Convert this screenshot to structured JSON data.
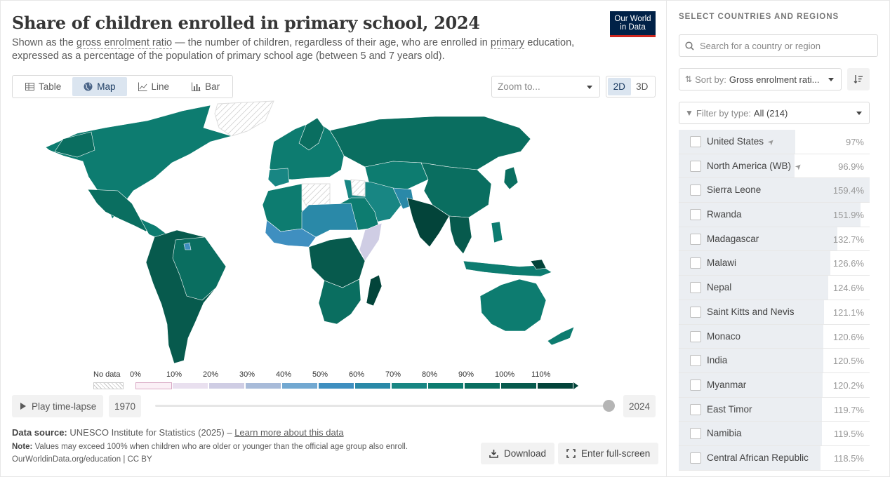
{
  "header": {
    "title": "Share of children enrolled in primary school, 2024",
    "subtitle_pre": "Shown as the ",
    "subtitle_link1": "gross enrolment ratio",
    "subtitle_mid": " — the number of children, regardless of their age, who are enrolled in ",
    "subtitle_link2": "primary",
    "subtitle_post": " education, expressed as a percentage of the population of primary school age (between 5 and 7 years old).",
    "logo_line1": "Our World",
    "logo_line2": "in Data"
  },
  "tabs": [
    {
      "label": "Table",
      "icon": "table-icon",
      "active": false
    },
    {
      "label": "Map",
      "icon": "globe-icon",
      "active": true
    },
    {
      "label": "Line",
      "icon": "line-chart-icon",
      "active": false
    },
    {
      "label": "Bar",
      "icon": "bar-chart-icon",
      "active": false
    }
  ],
  "zoom": {
    "placeholder": "Zoom to..."
  },
  "dims": {
    "two_d": "2D",
    "three_d": "3D",
    "active": "2D"
  },
  "legend": {
    "no_data": "No data",
    "ticks": [
      "0%",
      "10%",
      "20%",
      "30%",
      "40%",
      "50%",
      "60%",
      "70%",
      "80%",
      "90%",
      "100%",
      "110%"
    ],
    "colors": [
      "#fbf0f6",
      "#e9e0ef",
      "#cfcde4",
      "#a8bbd9",
      "#72a8d1",
      "#3f8fc0",
      "#2a89a8",
      "#188683",
      "#0d7c70",
      "#0a6e60",
      "#075a4d",
      "#03443a"
    ]
  },
  "timeline": {
    "play_label": "Play time-lapse",
    "start_year": "1970",
    "end_year": "2024",
    "position": 1.0
  },
  "footer": {
    "source_label": "Data source:",
    "source_text": "UNESCO Institute for Statistics (2025) – ",
    "source_link": "Learn more about this data",
    "note_label": "Note:",
    "note_text": "Values may exceed 100% when children who are older or younger than the official age group also enroll.",
    "cite": "OurWorldinData.org/education | CC BY",
    "download": "Download",
    "fullscreen": "Enter full-screen"
  },
  "sidebar": {
    "title": "SELECT COUNTRIES AND REGIONS",
    "search_placeholder": "Search for a country or region",
    "sort_label": "Sort by:",
    "sort_value": "Gross enrolment rati...",
    "filter_label": "Filter by type:",
    "filter_value": "All (214)",
    "rows": [
      {
        "name": "United States",
        "value": "97%",
        "num": 97,
        "pinned": true
      },
      {
        "name": "North America (WB)",
        "value": "96.9%",
        "num": 96.9,
        "pinned": true
      },
      {
        "name": "Sierra Leone",
        "value": "159.4%",
        "num": 159.4,
        "pinned": false
      },
      {
        "name": "Rwanda",
        "value": "151.9%",
        "num": 151.9,
        "pinned": false
      },
      {
        "name": "Madagascar",
        "value": "132.7%",
        "num": 132.7,
        "pinned": false
      },
      {
        "name": "Malawi",
        "value": "126.6%",
        "num": 126.6,
        "pinned": false
      },
      {
        "name": "Nepal",
        "value": "124.6%",
        "num": 124.6,
        "pinned": false
      },
      {
        "name": "Saint Kitts and Nevis",
        "value": "121.1%",
        "num": 121.1,
        "pinned": false
      },
      {
        "name": "Monaco",
        "value": "120.6%",
        "num": 120.6,
        "pinned": false
      },
      {
        "name": "India",
        "value": "120.5%",
        "num": 120.5,
        "pinned": false
      },
      {
        "name": "Myanmar",
        "value": "120.2%",
        "num": 120.2,
        "pinned": false
      },
      {
        "name": "East Timor",
        "value": "119.7%",
        "num": 119.7,
        "pinned": false
      },
      {
        "name": "Namibia",
        "value": "119.5%",
        "num": 119.5,
        "pinned": false
      },
      {
        "name": "Central African Republic",
        "value": "118.5%",
        "num": 118.5,
        "pinned": false
      }
    ]
  }
}
